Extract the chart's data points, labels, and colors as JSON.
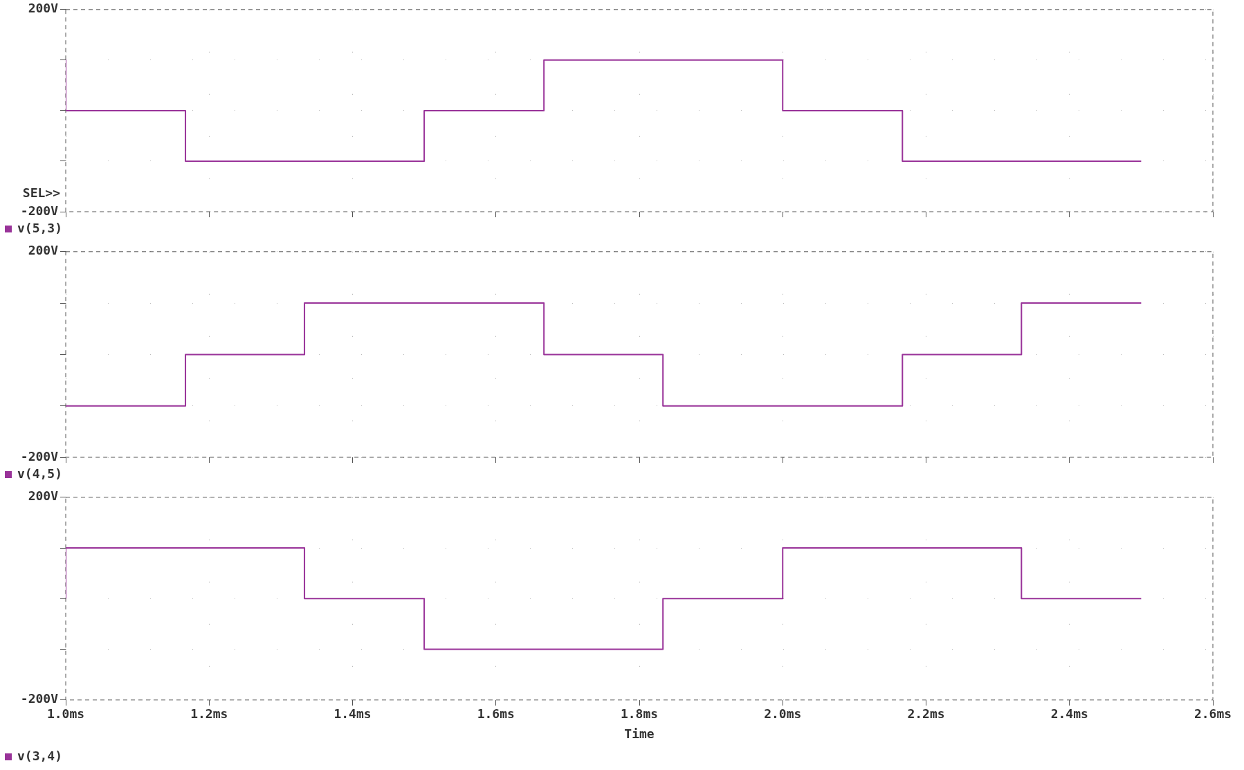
{
  "chart_data": [
    {
      "type": "line",
      "x": [
        1.0,
        1.0,
        1.167,
        1.167,
        1.5,
        1.5,
        1.667,
        1.667,
        2.0,
        2.0,
        2.167,
        2.167,
        2.5
      ],
      "series": [
        {
          "name": "v(5,3)",
          "color": "#993399",
          "values": [
            100,
            0,
            0,
            -100,
            -100,
            0,
            0,
            100,
            100,
            0,
            0,
            -100,
            -100
          ]
        }
      ],
      "xlim": [
        1.0,
        2.6
      ],
      "xticks": [
        {
          "value": 1.0,
          "label": null
        },
        {
          "value": 1.2,
          "label": null
        },
        {
          "value": 1.4,
          "label": null
        },
        {
          "value": 1.6,
          "label": null
        },
        {
          "value": 1.8,
          "label": null
        },
        {
          "value": 2.0,
          "label": null
        },
        {
          "value": 2.2,
          "label": null
        },
        {
          "value": 2.4,
          "label": null
        },
        {
          "value": 2.6,
          "label": null
        }
      ],
      "ylim": [
        -200,
        200
      ],
      "yticks": [
        {
          "value": -200,
          "label": "-200V"
        },
        {
          "value": -100,
          "label": null
        },
        {
          "value": 0,
          "label": null
        },
        {
          "value": 100,
          "label": null
        },
        {
          "value": 200,
          "label": "200V"
        }
      ],
      "tick_labels": "y",
      "grid": true,
      "legend": "bottom left",
      "annotations": [
        "SEL>>"
      ]
    },
    {
      "type": "line",
      "x": [
        1.0,
        1.167,
        1.167,
        1.333,
        1.333,
        1.667,
        1.667,
        1.833,
        1.833,
        2.167,
        2.167,
        2.333,
        2.333,
        2.5
      ],
      "series": [
        {
          "name": "v(4,5)",
          "color": "#993399",
          "values": [
            -100,
            -100,
            0,
            0,
            100,
            100,
            0,
            0,
            -100,
            -100,
            0,
            0,
            100,
            100
          ]
        }
      ],
      "xlim": [
        1.0,
        2.6
      ],
      "xticks": [
        {
          "value": 1.0,
          "label": null
        },
        {
          "value": 1.2,
          "label": null
        },
        {
          "value": 1.4,
          "label": null
        },
        {
          "value": 1.6,
          "label": null
        },
        {
          "value": 1.8,
          "label": null
        },
        {
          "value": 2.0,
          "label": null
        },
        {
          "value": 2.2,
          "label": null
        },
        {
          "value": 2.4,
          "label": null
        },
        {
          "value": 2.6,
          "label": null
        }
      ],
      "ylim": [
        -200,
        200
      ],
      "yticks": [
        {
          "value": -200,
          "label": "-200V"
        },
        {
          "value": -100,
          "label": null
        },
        {
          "value": 0,
          "label": null
        },
        {
          "value": 100,
          "label": null
        },
        {
          "value": 200,
          "label": "200V"
        }
      ],
      "tick_labels": "y",
      "grid": true,
      "legend": "bottom left"
    },
    {
      "type": "line",
      "x": [
        1.0,
        1.0,
        1.333,
        1.333,
        1.5,
        1.5,
        1.833,
        1.833,
        2.0,
        2.0,
        2.333,
        2.333,
        2.5
      ],
      "series": [
        {
          "name": "v(3,4)",
          "color": "#993399",
          "values": [
            0,
            100,
            100,
            0,
            0,
            -100,
            -100,
            0,
            0,
            100,
            100,
            0,
            0
          ]
        }
      ],
      "xlabel": "Time",
      "xlim": [
        1.0,
        2.6
      ],
      "xticks": [
        {
          "value": 1.0,
          "label": "1.0ms"
        },
        {
          "value": 1.2,
          "label": "1.2ms"
        },
        {
          "value": 1.4,
          "label": "1.4ms"
        },
        {
          "value": 1.6,
          "label": "1.6ms"
        },
        {
          "value": 1.8,
          "label": "1.8ms"
        },
        {
          "value": 2.0,
          "label": "2.0ms"
        },
        {
          "value": 2.2,
          "label": "2.2ms"
        },
        {
          "value": 2.4,
          "label": "2.4ms"
        },
        {
          "value": 2.6,
          "label": "2.6ms"
        }
      ],
      "ylim": [
        -200,
        200
      ],
      "yticks": [
        {
          "value": -200,
          "label": "-200V"
        },
        {
          "value": -100,
          "label": null
        },
        {
          "value": 0,
          "label": null
        },
        {
          "value": 100,
          "label": null
        },
        {
          "value": 200,
          "label": "200V"
        }
      ],
      "grid": true,
      "legend": "bottom left"
    }
  ]
}
